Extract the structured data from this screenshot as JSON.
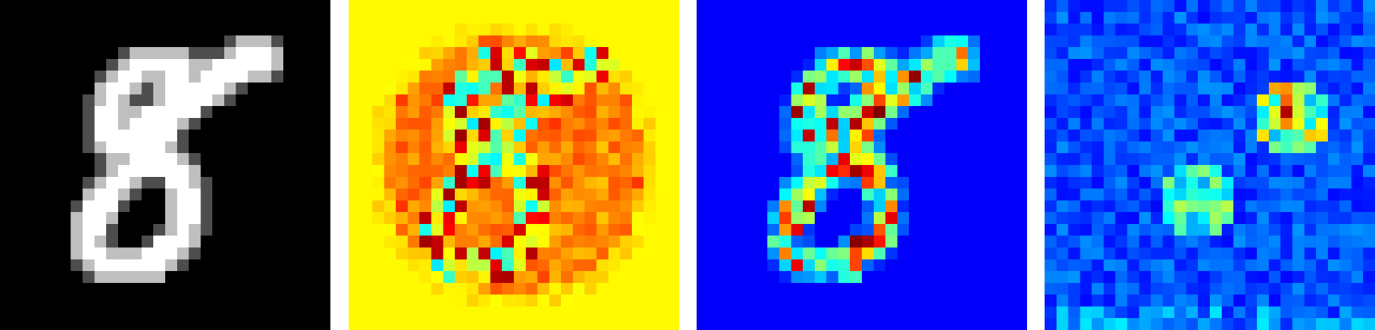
{
  "figure": {
    "panels": [
      {
        "name": "input-digit-image",
        "colormap": "gray",
        "background": "#000000"
      },
      {
        "name": "attribution-map-1",
        "colormap": "jet",
        "background": "#ecf80a"
      },
      {
        "name": "attribution-map-2",
        "colormap": "jet",
        "background": "#000a8c"
      },
      {
        "name": "attribution-map-3",
        "colormap": "jet",
        "background": "#0a12c8"
      }
    ]
  }
}
